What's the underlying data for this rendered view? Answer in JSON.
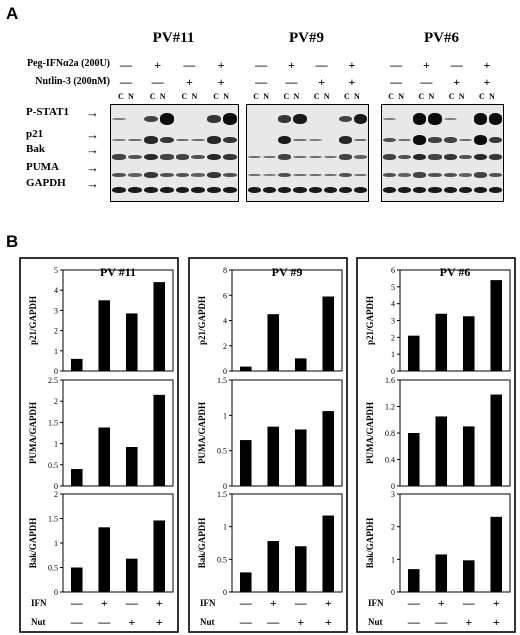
{
  "panel_a": {
    "letter": "A",
    "condition_labels": [
      "Peg-IFNα2a (200U)",
      "Nutlin-3 (200nM)"
    ],
    "sign_minus": "—",
    "sign_plus": "+",
    "fraction_c": "C",
    "fraction_n": "N",
    "row_labels": [
      "P-STAT1",
      "p21",
      "Bak",
      "PUMA",
      "GAPDH"
    ],
    "patients": [
      "PV#11",
      "PV#9",
      "PV#6"
    ]
  },
  "panel_b": {
    "letter": "B",
    "row_label_ifn": "IFN",
    "row_label_nut": "Nut",
    "ifn_signs": [
      "—",
      "+",
      "—",
      "+"
    ],
    "nut_signs": [
      "—",
      "—",
      "+",
      "+"
    ]
  },
  "chart_data": [
    {
      "type": "bar",
      "title": "PV #11",
      "panels": [
        {
          "ylabel": "p21/GAPDH",
          "ylim": [
            0,
            5
          ],
          "ticks": [
            0,
            1,
            2,
            3,
            4,
            5
          ],
          "values": [
            0.6,
            3.5,
            2.85,
            4.4
          ]
        },
        {
          "ylabel": "PUMA/GAPDH",
          "ylim": [
            0,
            2.5
          ],
          "ticks": [
            0,
            0.5,
            1,
            1.5,
            2,
            2.5
          ],
          "values": [
            0.4,
            1.38,
            0.92,
            2.15
          ]
        },
        {
          "ylabel": "Bak/GAPDH",
          "ylim": [
            0,
            2
          ],
          "ticks": [
            0,
            0.5,
            1,
            1.5,
            2
          ],
          "values": [
            0.5,
            1.32,
            0.68,
            1.46
          ]
        }
      ]
    },
    {
      "type": "bar",
      "title": "PV #9",
      "panels": [
        {
          "ylabel": "p21/GAPDH",
          "ylim": [
            0,
            8
          ],
          "ticks": [
            0,
            2,
            4,
            6,
            8
          ],
          "values": [
            0.35,
            4.5,
            1.0,
            5.9
          ]
        },
        {
          "ylabel": "PUMA/GAPDH",
          "ylim": [
            0,
            1.5
          ],
          "ticks": [
            0,
            0.5,
            1,
            1.5
          ],
          "values": [
            0.65,
            0.84,
            0.8,
            1.06
          ]
        },
        {
          "ylabel": "Bak/GAPDH",
          "ylim": [
            0,
            1.5
          ],
          "ticks": [
            0,
            0.5,
            1,
            1.5
          ],
          "values": [
            0.3,
            0.78,
            0.7,
            1.17
          ]
        }
      ]
    },
    {
      "type": "bar",
      "title": "PV #6",
      "panels": [
        {
          "ylabel": "p21/GAPDH",
          "ylim": [
            0,
            6
          ],
          "ticks": [
            0,
            1,
            2,
            3,
            4,
            5,
            6
          ],
          "values": [
            2.1,
            3.4,
            3.25,
            5.4
          ]
        },
        {
          "ylabel": "PUMA/GAPDH",
          "ylim": [
            0,
            1.6
          ],
          "ticks": [
            0,
            0.4,
            0.8,
            1.2,
            1.6
          ],
          "values": [
            0.8,
            1.05,
            0.9,
            1.38
          ]
        },
        {
          "ylabel": "Bak/GAPDH",
          "ylim": [
            0,
            3
          ],
          "ticks": [
            0,
            1,
            2,
            3
          ],
          "values": [
            0.7,
            1.15,
            0.97,
            2.3
          ]
        }
      ]
    }
  ]
}
